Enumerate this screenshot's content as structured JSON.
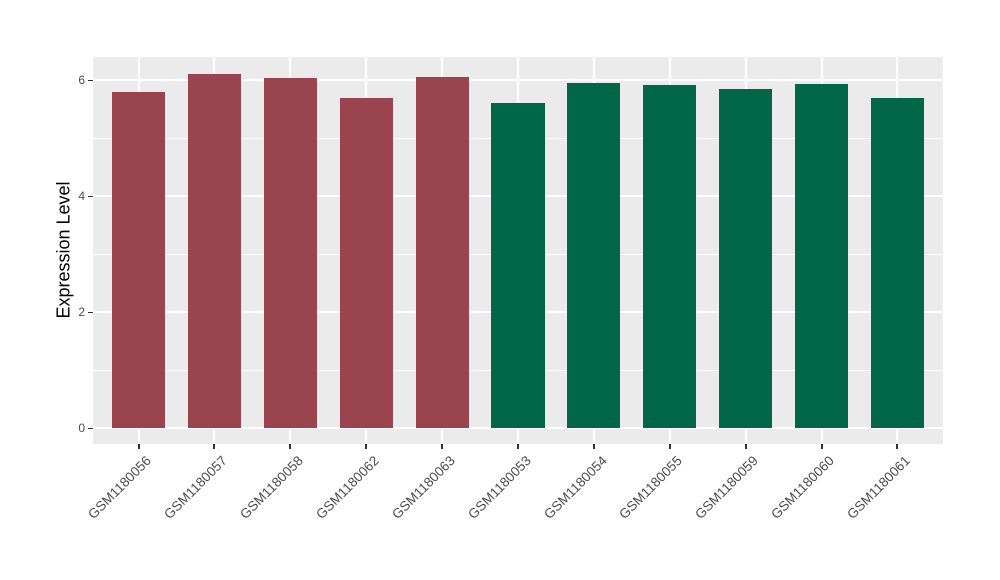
{
  "figure": {
    "background": "#FFFFFF"
  },
  "chart_data": {
    "type": "bar",
    "title": "",
    "xlabel": "",
    "ylabel": "Expression Level",
    "categories": [
      "GSM1180056",
      "GSM1180057",
      "GSM1180058",
      "GSM1180062",
      "GSM1180063",
      "GSM1180053",
      "GSM1180054",
      "GSM1180055",
      "GSM1180059",
      "GSM1180060",
      "GSM1180061"
    ],
    "values": [
      5.79,
      6.1,
      6.03,
      5.69,
      6.06,
      5.61,
      5.96,
      5.92,
      5.85,
      5.93,
      5.69
    ],
    "bar_colors": [
      "#9A4450",
      "#9A4450",
      "#9A4450",
      "#9A4450",
      "#9A4450",
      "#006647",
      "#006647",
      "#006647",
      "#006647",
      "#006647",
      "#006647"
    ],
    "group_colors": {
      "left_group_red": "#9A4450",
      "right_group_green": "#006647"
    },
    "yticks": [
      0,
      2,
      4,
      6
    ],
    "yticks_minor": [
      1,
      3,
      5
    ],
    "ylim": [
      -0.27,
      6.4
    ],
    "bar_width_fraction": 0.7,
    "grid": "on",
    "legend": "none",
    "panel_background": "#EBEBEB",
    "grid_major_color": "#FFFFFF",
    "grid_minor_color": "#FFFFFF",
    "tick_color": "#333333",
    "tick_label_color": "#4D4D4D",
    "axis_title_color": "#000000"
  }
}
